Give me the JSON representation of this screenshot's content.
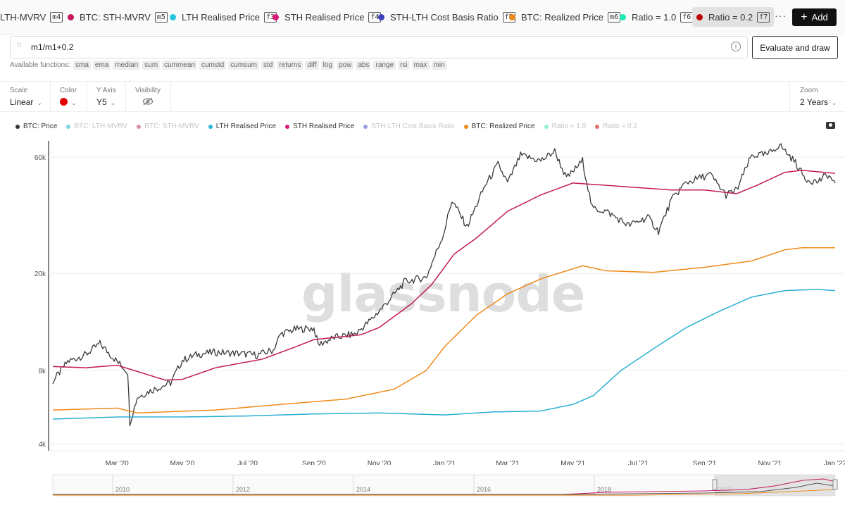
{
  "tabs": [
    {
      "label": "LTH-MVRV",
      "key": "m4",
      "color": ""
    },
    {
      "label": "BTC: STH-MVRV",
      "key": "m5",
      "color": "#c2185b"
    },
    {
      "label": "LTH Realised Price",
      "key": "f3",
      "color": "#26c6da"
    },
    {
      "label": "STH Realised Price",
      "key": "f4",
      "color": "#d81b78"
    },
    {
      "label": "STH-LTH Cost Basis Ratio",
      "key": "f5",
      "color": "#3f3fbf"
    },
    {
      "label": "BTC: Realized Price",
      "key": "m6",
      "color": "#ef8a1a"
    },
    {
      "label": "Ratio = 1.0",
      "key": "f6",
      "color": "#1de9b6"
    },
    {
      "label": "Ratio = 0.2",
      "key": "f7",
      "color": "#c00000"
    }
  ],
  "more_label": "···",
  "add_label": "Add",
  "formula": {
    "value": "m1/m1+0.2",
    "fx_icon": "fx-icon",
    "eval_label": "Evaluate and draw"
  },
  "functions_label": "Available functions:",
  "functions": [
    "sma",
    "ema",
    "median",
    "sum",
    "cummean",
    "cumstd",
    "cumsum",
    "std",
    "returns",
    "diff",
    "log",
    "pow",
    "abs",
    "range",
    "rsi",
    "max",
    "min"
  ],
  "controls": {
    "scale": {
      "label": "Scale",
      "value": "Linear"
    },
    "color": {
      "label": "Color",
      "value": "#e00000"
    },
    "yaxis": {
      "label": "Y Axis",
      "value": "Y5"
    },
    "visibility": {
      "label": "Visibility"
    },
    "zoom": {
      "label": "Zoom",
      "value": "2 Years"
    }
  },
  "legend": [
    {
      "label": "BTC: Price",
      "color": "#333333",
      "active": true
    },
    {
      "label": "BTC: LTH-MVRV",
      "color": "#7fd4e0",
      "active": false
    },
    {
      "label": "BTC: STH-MVRV",
      "color": "#d78fb0",
      "active": false
    },
    {
      "label": "LTH Realised Price",
      "color": "#26b5d8",
      "active": true
    },
    {
      "label": "STH Realised Price",
      "color": "#d81b78",
      "active": true
    },
    {
      "label": "STH-LTH Cost Basis Ratio",
      "color": "#9a9ae0",
      "active": false
    },
    {
      "label": "BTC: Realized Price",
      "color": "#ef8a1a",
      "active": true
    },
    {
      "label": "Ratio = 1.0",
      "color": "#8ff0cf",
      "active": false
    },
    {
      "label": "Ratio = 0.2",
      "color": "#e07070",
      "active": false
    }
  ],
  "watermark": "glassnode",
  "chart_data": {
    "type": "line",
    "title": "",
    "xlabel": "",
    "ylabel": "",
    "yscale": "log",
    "ylim": [
      4000,
      70000
    ],
    "y_ticks": [
      {
        "value": 4000,
        "label": "4k"
      },
      {
        "value": 8000,
        "label": "8k"
      },
      {
        "value": 20000,
        "label": "20k"
      },
      {
        "value": 60000,
        "label": "60k"
      }
    ],
    "x_range": [
      "2020-01-01",
      "2022-01-01"
    ],
    "x_ticks": [
      {
        "date": "2020-03-01",
        "label": "Mar '20"
      },
      {
        "date": "2020-05-01",
        "label": "May '20"
      },
      {
        "date": "2020-07-01",
        "label": "Jul '20"
      },
      {
        "date": "2020-09-01",
        "label": "Sep '20"
      },
      {
        "date": "2020-11-01",
        "label": "Nov '20"
      },
      {
        "date": "2021-01-01",
        "label": "Jan '21"
      },
      {
        "date": "2021-03-01",
        "label": "Mar '21"
      },
      {
        "date": "2021-05-01",
        "label": "May '21"
      },
      {
        "date": "2021-07-01",
        "label": "Jul '21"
      },
      {
        "date": "2021-09-01",
        "label": "Sep '21"
      },
      {
        "date": "2021-11-01",
        "label": "Nov '21"
      },
      {
        "date": "2022-01-01",
        "label": "Jan '22"
      }
    ],
    "series": [
      {
        "name": "BTC: Price",
        "color": "#3a3a3a",
        "width": 1.3,
        "points": [
          [
            "2020-01-01",
            7200
          ],
          [
            "2020-01-15",
            8700
          ],
          [
            "2020-02-01",
            9300
          ],
          [
            "2020-02-14",
            10300
          ],
          [
            "2020-03-01",
            8700
          ],
          [
            "2020-03-11",
            7900
          ],
          [
            "2020-03-13",
            4900
          ],
          [
            "2020-03-20",
            6200
          ],
          [
            "2020-04-01",
            6600
          ],
          [
            "2020-04-20",
            7100
          ],
          [
            "2020-05-01",
            8800
          ],
          [
            "2020-05-15",
            9300
          ],
          [
            "2020-06-01",
            9500
          ],
          [
            "2020-06-20",
            9400
          ],
          [
            "2020-07-10",
            9250
          ],
          [
            "2020-07-25",
            9700
          ],
          [
            "2020-08-01",
            11300
          ],
          [
            "2020-08-15",
            11800
          ],
          [
            "2020-09-01",
            11900
          ],
          [
            "2020-09-05",
            10200
          ],
          [
            "2020-09-20",
            10900
          ],
          [
            "2020-10-10",
            11300
          ],
          [
            "2020-10-25",
            13000
          ],
          [
            "2020-11-10",
            15500
          ],
          [
            "2020-11-25",
            18500
          ],
          [
            "2020-12-15",
            19300
          ],
          [
            "2020-12-31",
            29000
          ],
          [
            "2021-01-08",
            40000
          ],
          [
            "2021-01-22",
            31000
          ],
          [
            "2021-02-08",
            46000
          ],
          [
            "2021-02-20",
            56000
          ],
          [
            "2021-03-01",
            47000
          ],
          [
            "2021-03-13",
            61000
          ],
          [
            "2021-04-01",
            58000
          ],
          [
            "2021-04-14",
            63500
          ],
          [
            "2021-04-25",
            49000
          ],
          [
            "2021-05-10",
            58000
          ],
          [
            "2021-05-19",
            37000
          ],
          [
            "2021-06-01",
            36000
          ],
          [
            "2021-06-22",
            31500
          ],
          [
            "2021-07-10",
            34000
          ],
          [
            "2021-07-20",
            29800
          ],
          [
            "2021-08-01",
            40000
          ],
          [
            "2021-08-14",
            47000
          ],
          [
            "2021-09-06",
            51000
          ],
          [
            "2021-09-21",
            42000
          ],
          [
            "2021-10-01",
            44000
          ],
          [
            "2021-10-15",
            61000
          ],
          [
            "2021-10-30",
            61500
          ],
          [
            "2021-11-10",
            67500
          ],
          [
            "2021-11-25",
            57000
          ],
          [
            "2021-12-04",
            49000
          ],
          [
            "2021-12-15",
            47500
          ],
          [
            "2021-12-25",
            50800
          ],
          [
            "2022-01-01",
            47000
          ]
        ]
      },
      {
        "name": "STH Realised Price",
        "color": "#c2185b",
        "width": 1.5,
        "points": [
          [
            "2020-01-01",
            8300
          ],
          [
            "2020-02-01",
            8200
          ],
          [
            "2020-03-01",
            8400
          ],
          [
            "2020-04-15",
            7300
          ],
          [
            "2020-05-01",
            7350
          ],
          [
            "2020-06-01",
            8200
          ],
          [
            "2020-07-15",
            8900
          ],
          [
            "2020-08-15",
            10000
          ],
          [
            "2020-09-01",
            10700
          ],
          [
            "2020-10-15",
            11200
          ],
          [
            "2020-11-01",
            12000
          ],
          [
            "2020-12-01",
            15000
          ],
          [
            "2020-12-20",
            18000
          ],
          [
            "2021-01-10",
            24000
          ],
          [
            "2021-01-31",
            28000
          ],
          [
            "2021-03-01",
            36000
          ],
          [
            "2021-04-01",
            42000
          ],
          [
            "2021-05-01",
            47000
          ],
          [
            "2021-06-01",
            46000
          ],
          [
            "2021-07-01",
            45000
          ],
          [
            "2021-08-01",
            44000
          ],
          [
            "2021-09-01",
            44000
          ],
          [
            "2021-10-01",
            42500
          ],
          [
            "2021-10-20",
            46000
          ],
          [
            "2021-11-15",
            52000
          ],
          [
            "2021-12-01",
            53000
          ],
          [
            "2022-01-01",
            51500
          ]
        ]
      },
      {
        "name": "BTC: Realized Price",
        "color": "#ef8a1a",
        "width": 1.5,
        "points": [
          [
            "2020-01-01",
            5500
          ],
          [
            "2020-03-01",
            5600
          ],
          [
            "2020-03-20",
            5350
          ],
          [
            "2020-06-01",
            5500
          ],
          [
            "2020-08-01",
            5800
          ],
          [
            "2020-10-01",
            6100
          ],
          [
            "2020-11-15",
            6700
          ],
          [
            "2020-12-15",
            8000
          ],
          [
            "2021-01-01",
            10000
          ],
          [
            "2021-01-31",
            13500
          ],
          [
            "2021-03-01",
            16500
          ],
          [
            "2021-04-01",
            19000
          ],
          [
            "2021-05-10",
            21500
          ],
          [
            "2021-06-01",
            20500
          ],
          [
            "2021-07-15",
            20200
          ],
          [
            "2021-09-01",
            21200
          ],
          [
            "2021-10-15",
            22500
          ],
          [
            "2021-11-15",
            25000
          ],
          [
            "2021-12-01",
            25500
          ],
          [
            "2022-01-01",
            25500
          ]
        ]
      },
      {
        "name": "LTH Realised Price",
        "color": "#29afd3",
        "width": 1.5,
        "points": [
          [
            "2020-01-01",
            5050
          ],
          [
            "2020-03-01",
            5150
          ],
          [
            "2020-05-01",
            5150
          ],
          [
            "2020-07-01",
            5200
          ],
          [
            "2020-09-01",
            5300
          ],
          [
            "2020-11-01",
            5350
          ],
          [
            "2021-01-01",
            5250
          ],
          [
            "2021-02-15",
            5400
          ],
          [
            "2021-04-01",
            5450
          ],
          [
            "2021-05-01",
            5800
          ],
          [
            "2021-05-20",
            6300
          ],
          [
            "2021-06-15",
            8000
          ],
          [
            "2021-07-15",
            9800
          ],
          [
            "2021-08-15",
            12000
          ],
          [
            "2021-09-15",
            14000
          ],
          [
            "2021-10-15",
            16000
          ],
          [
            "2021-11-15",
            17000
          ],
          [
            "2021-12-15",
            17200
          ],
          [
            "2022-01-01",
            17000
          ]
        ]
      }
    ]
  },
  "navigator": {
    "years": [
      "2010",
      "2012",
      "2014",
      "2016",
      "2018",
      "2020"
    ]
  }
}
